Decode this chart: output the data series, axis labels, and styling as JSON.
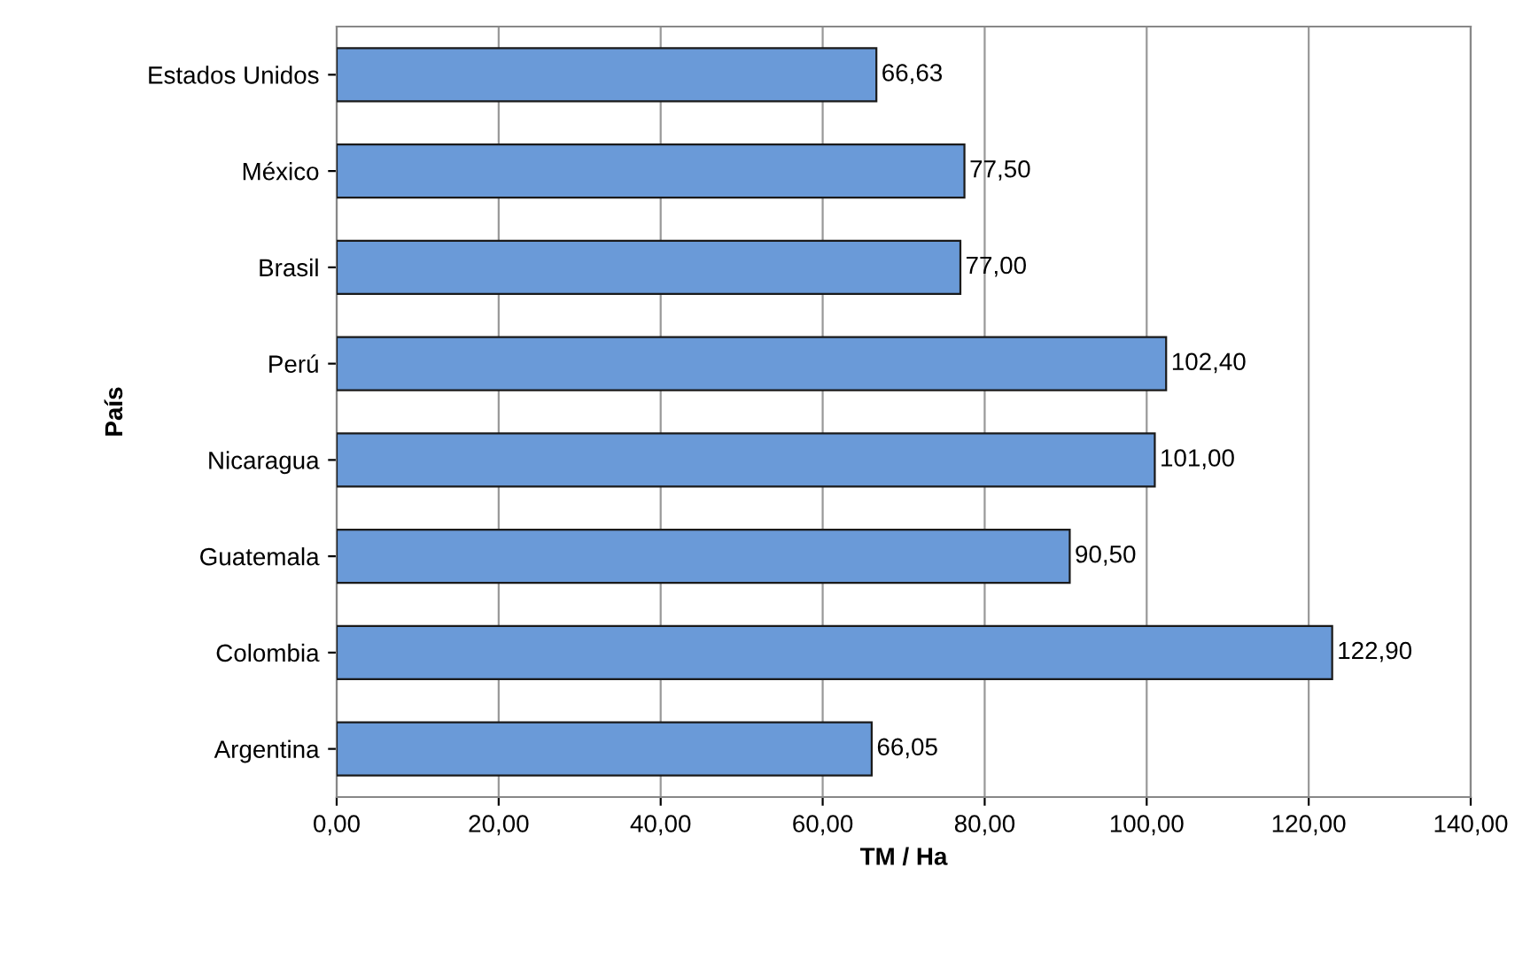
{
  "chart_data": {
    "type": "bar",
    "orientation": "horizontal",
    "xlabel": "TM / Ha",
    "ylabel": "País",
    "categories": [
      "Estados Unidos",
      "México",
      "Brasil",
      "Perú",
      "Nicaragua",
      "Guatemala",
      "Colombia",
      "Argentina"
    ],
    "values": [
      66.63,
      77.5,
      77.0,
      102.4,
      101.0,
      90.5,
      122.9,
      66.05
    ],
    "value_labels": [
      "66,63",
      "77,50",
      "77,00",
      "102,40",
      "101,00",
      "90,50",
      "122,90",
      "66,05"
    ],
    "color": "#6a9ad8",
    "xlim": [
      0,
      140
    ],
    "xticks": [
      {
        "value": 0,
        "label": "0,00"
      },
      {
        "value": 20,
        "label": "20,00"
      },
      {
        "value": 40,
        "label": "40,00"
      },
      {
        "value": 60,
        "label": "60,00"
      },
      {
        "value": 80,
        "label": "80,00"
      },
      {
        "value": 100,
        "label": "100,00"
      },
      {
        "value": 120,
        "label": "120,00"
      },
      {
        "value": 140,
        "label": "140,00"
      }
    ],
    "grid": "x"
  }
}
